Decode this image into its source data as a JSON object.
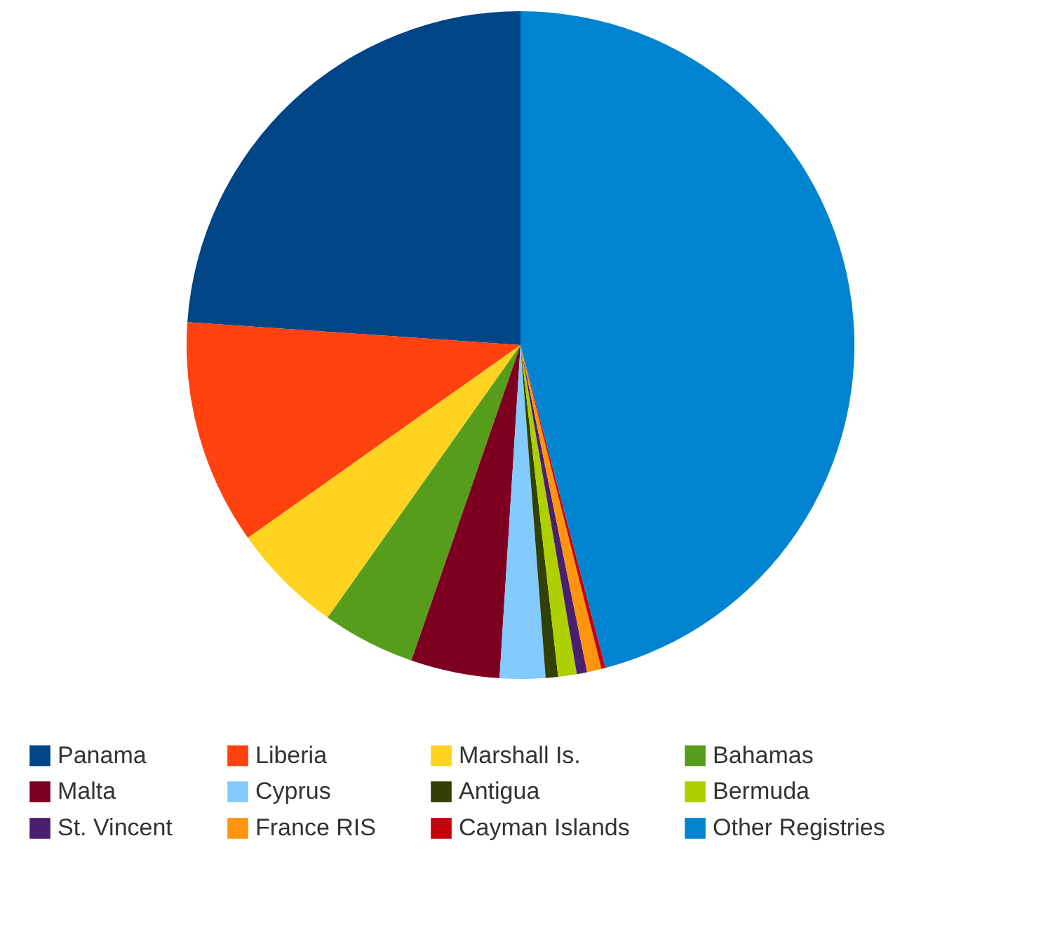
{
  "chart_data": {
    "type": "pie",
    "categories": [
      "Panama",
      "Liberia",
      "Marshall Is.",
      "Bahamas",
      "Malta",
      "Cyprus",
      "Antigua",
      "Bermuda",
      "St. Vincent",
      "France RIS",
      "Cayman Islands",
      "Other Registries"
    ],
    "values": [
      23.9,
      10.9,
      5.4,
      4.5,
      4.3,
      2.2,
      0.6,
      0.9,
      0.5,
      0.7,
      0.2,
      45.9
    ],
    "colors": [
      "#004586",
      "#ff420e",
      "#ffd320",
      "#579d1c",
      "#7e0021",
      "#83caff",
      "#314004",
      "#aecf00",
      "#4b1f6f",
      "#ff950e",
      "#c5000b",
      "#0084d1"
    ],
    "legend": "bottom"
  }
}
